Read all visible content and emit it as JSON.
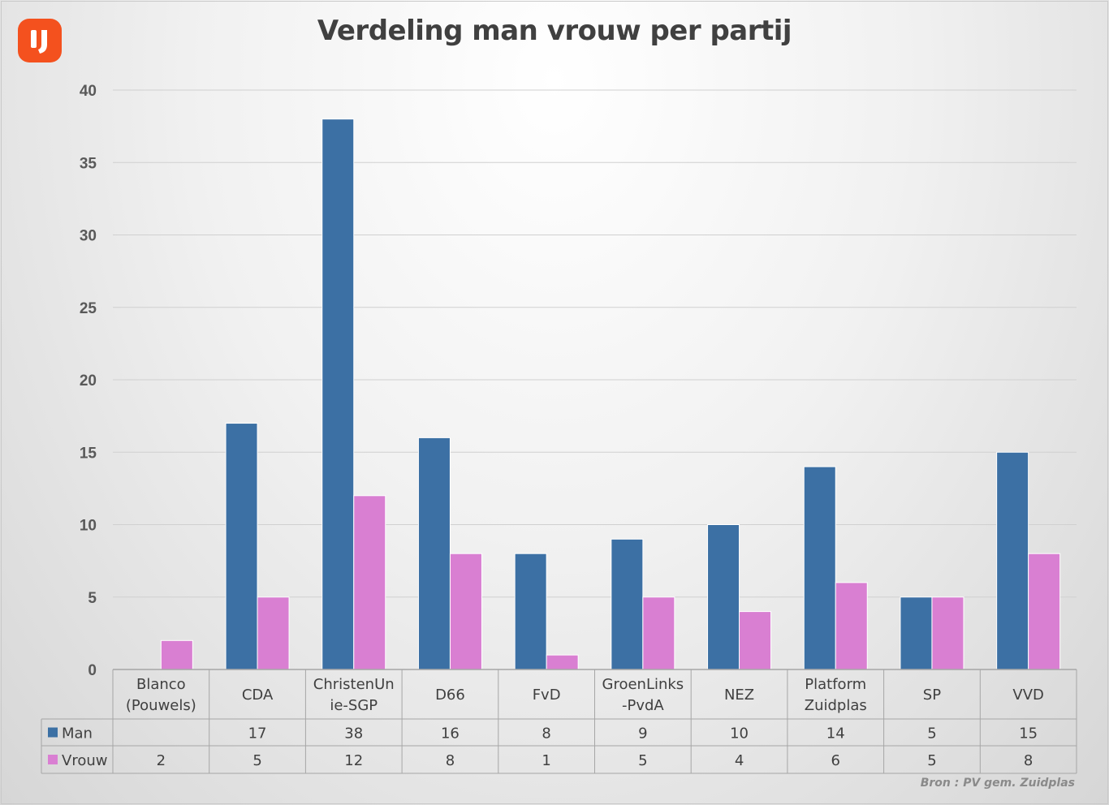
{
  "brand_color": "#f4511e",
  "chart_data": {
    "type": "bar",
    "title": "Verdeling man vrouw per partij",
    "categories": [
      [
        "Blanco",
        "(Pouwels)"
      ],
      [
        "CDA"
      ],
      [
        "ChristenUn",
        "ie-SGP"
      ],
      [
        "D66"
      ],
      [
        "FvD"
      ],
      [
        "GroenLinks",
        "-PvdA"
      ],
      [
        "NEZ"
      ],
      [
        "Platform",
        "Zuidplas"
      ],
      [
        "SP"
      ],
      [
        "VVD"
      ]
    ],
    "series": [
      {
        "name": "Man",
        "color": "#3c70a4",
        "values": [
          null,
          17,
          38,
          16,
          8,
          9,
          10,
          14,
          5,
          15
        ]
      },
      {
        "name": "Vrouw",
        "color": "#d97fd2",
        "values": [
          2,
          5,
          12,
          8,
          1,
          5,
          4,
          6,
          5,
          8
        ]
      }
    ],
    "ylim": [
      0,
      40
    ],
    "yticks": [
      0,
      5,
      10,
      15,
      20,
      25,
      30,
      35,
      40
    ],
    "grid": true,
    "legend": "data-table",
    "source": "Bron : PV gem. Zuidplas"
  }
}
